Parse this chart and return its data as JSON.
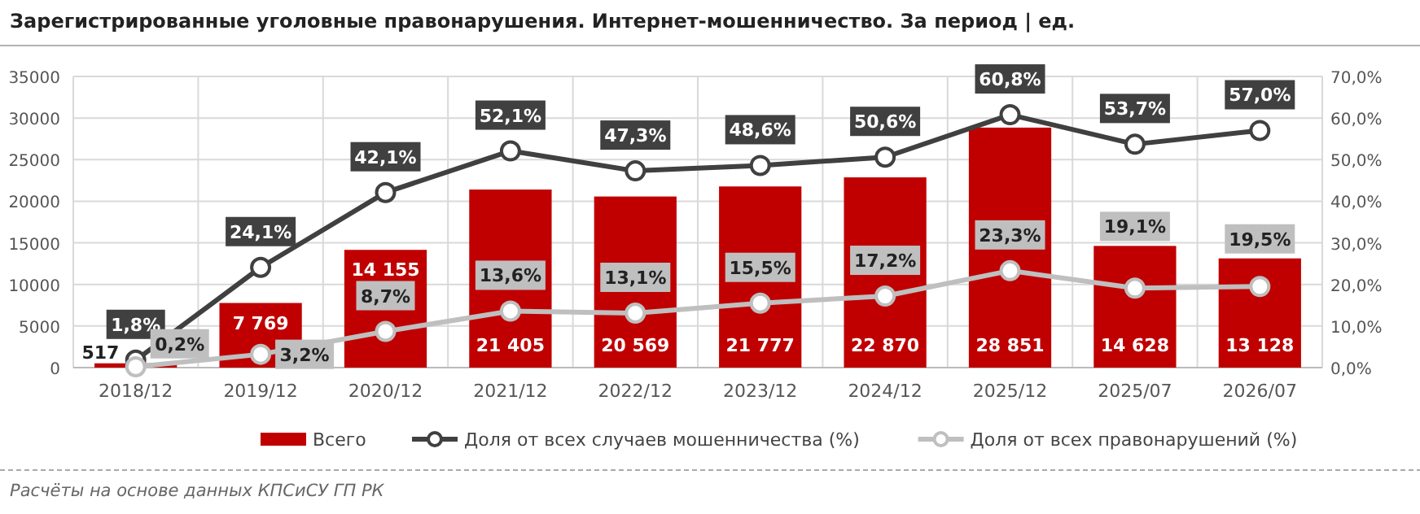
{
  "chart_data": {
    "type": "bar",
    "title": "Зарегистрированные уголовные правонарушения. Интернет-мошенничество. За период | ед.",
    "categories": [
      "2018/12",
      "2019/12",
      "2020/12",
      "2021/12",
      "2022/12",
      "2023/12",
      "2024/12",
      "2025/12",
      "2025/07",
      "2026/07"
    ],
    "series": [
      {
        "name": "Всего",
        "color": "#c00000",
        "values": [
          517,
          7769,
          14155,
          21405,
          20569,
          21777,
          22870,
          28851,
          14628,
          13128
        ],
        "value_labels": [
          "517",
          "7 769",
          "14 155",
          "21 405",
          "20 569",
          "21 777",
          "22 870",
          "28 851",
          "14 628",
          "13 128"
        ]
      },
      {
        "name": "Доля от всех случаев мошенничества (%)",
        "type": "line",
        "axis": "y2",
        "color": "#404040",
        "marker": "circle",
        "values": [
          1.8,
          24.1,
          42.1,
          52.1,
          47.3,
          48.6,
          50.6,
          60.8,
          53.7,
          57.0
        ],
        "value_labels": [
          "1,8%",
          "24,1%",
          "42,1%",
          "52,1%",
          "47,3%",
          "48,6%",
          "50,6%",
          "60,8%",
          "53,7%",
          "57,0%"
        ]
      },
      {
        "name": "Доля от всех правонарушений (%)",
        "type": "line",
        "axis": "y2",
        "color": "#bfbfbf",
        "marker": "circle",
        "values": [
          0.2,
          3.2,
          8.7,
          13.6,
          13.1,
          15.5,
          17.2,
          23.3,
          19.1,
          19.5
        ],
        "value_labels": [
          "0,2%",
          "3,2%",
          "8,7%",
          "13,6%",
          "13,1%",
          "15,5%",
          "17,2%",
          "23,3%",
          "19,1%",
          "19,5%"
        ]
      }
    ],
    "ylim": [
      0,
      35000
    ],
    "yticks": [
      0,
      5000,
      10000,
      15000,
      20000,
      25000,
      30000,
      35000
    ],
    "y2lim": [
      0,
      70
    ],
    "y2ticks": [
      {
        "value": 0,
        "label": "0,0%"
      },
      {
        "value": 10,
        "label": "10,0%"
      },
      {
        "value": 20,
        "label": "20,0%"
      },
      {
        "value": 30,
        "label": "30,0%"
      },
      {
        "value": 40,
        "label": "40,0%"
      },
      {
        "value": 50,
        "label": "50,0%"
      },
      {
        "value": 60,
        "label": "60,0%"
      },
      {
        "value": 70,
        "label": "70,0%"
      }
    ],
    "grid": true,
    "legend": "bottom",
    "annotations": [
      "Расчёты на основе данных КПСиСУ ГП РК"
    ]
  }
}
